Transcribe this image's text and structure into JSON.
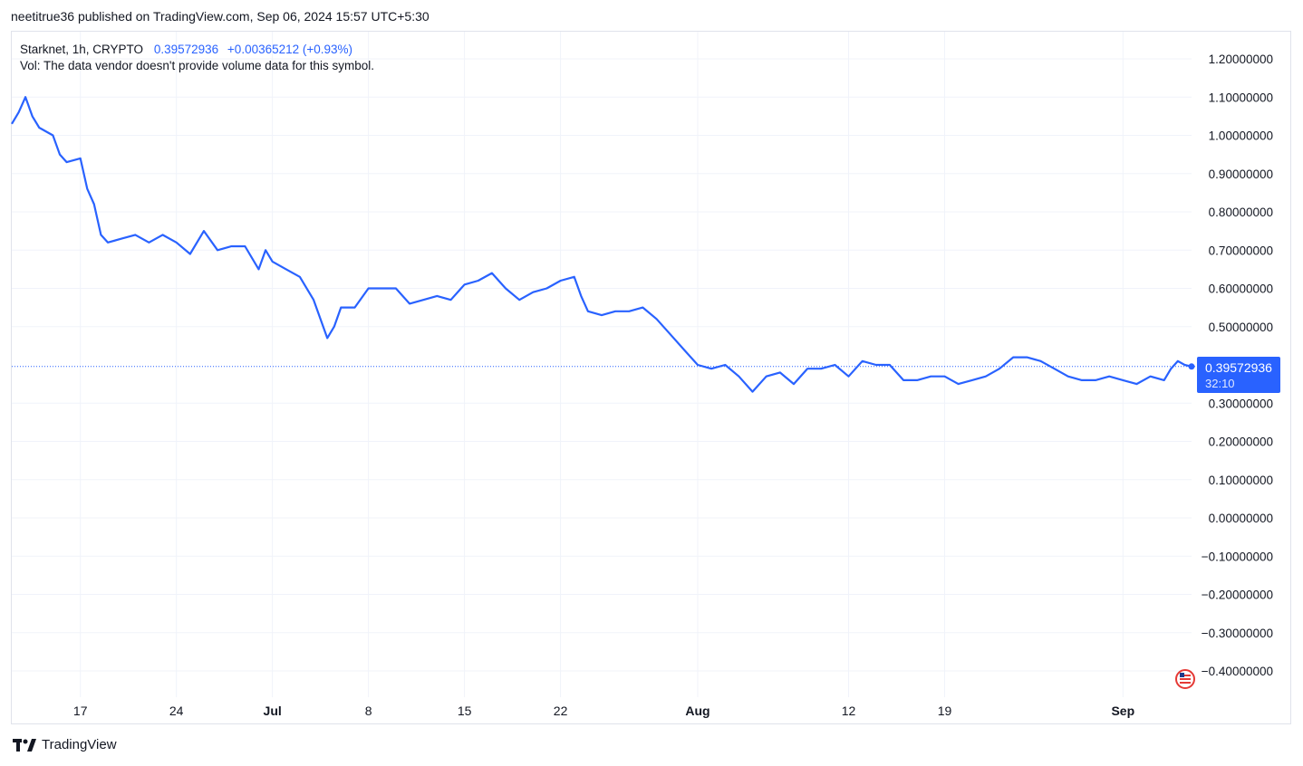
{
  "publisher_line": "neetitrue36 published on TradingView.com, Sep 06, 2024 15:57 UTC+5:30",
  "legend": {
    "symbol": "Starknet, 1h, CRYPTO",
    "last": "0.39572936",
    "change": "+0.00365212 (+0.93%)",
    "volume_note": "Vol: The data vendor doesn't provide volume data for this symbol."
  },
  "price_label": {
    "value": "0.39572936",
    "countdown": "32:10"
  },
  "footer": {
    "brand": "TradingView"
  },
  "colors": {
    "line": "#2962ff",
    "label_bg": "#2962ff",
    "grid": "#f0f3fa",
    "text": "#131722"
  },
  "icons": {
    "brand_logo": "tradingview-logo-icon",
    "flag": "us-flag-icon"
  },
  "chart_data": {
    "type": "line",
    "title": "",
    "xlabel": "",
    "ylabel": "",
    "grid": true,
    "x_range": [
      "2024-06-12",
      "2024-09-06"
    ],
    "ylim": [
      -0.45,
      1.25
    ],
    "y_ticks": [
      "1.20000000",
      "1.10000000",
      "1.00000000",
      "0.90000000",
      "0.80000000",
      "0.70000000",
      "0.60000000",
      "0.50000000",
      "0.30000000",
      "0.20000000",
      "0.10000000",
      "0.00000000",
      "−0.10000000",
      "−0.20000000",
      "−0.30000000",
      "−0.40000000"
    ],
    "y_tick_values": [
      1.2,
      1.1,
      1.0,
      0.9,
      0.8,
      0.7,
      0.6,
      0.5,
      0.3,
      0.2,
      0.1,
      0.0,
      -0.1,
      -0.2,
      -0.3,
      -0.4
    ],
    "x_ticks": [
      {
        "label": "17",
        "date": "2024-06-17",
        "bold": false
      },
      {
        "label": "24",
        "date": "2024-06-24",
        "bold": false
      },
      {
        "label": "Jul",
        "date": "2024-07-01",
        "bold": true
      },
      {
        "label": "8",
        "date": "2024-07-08",
        "bold": false
      },
      {
        "label": "15",
        "date": "2024-07-15",
        "bold": false
      },
      {
        "label": "22",
        "date": "2024-07-22",
        "bold": false
      },
      {
        "label": "Aug",
        "date": "2024-08-01",
        "bold": true
      },
      {
        "label": "12",
        "date": "2024-08-12",
        "bold": false
      },
      {
        "label": "19",
        "date": "2024-08-19",
        "bold": false
      },
      {
        "label": "Sep",
        "date": "2024-09-01",
        "bold": true
      }
    ],
    "last_price": 0.39572936,
    "series": [
      {
        "points": [
          [
            "2024-06-12",
            1.03
          ],
          [
            "2024-06-12",
            1.06
          ],
          [
            "2024-06-13",
            1.1
          ],
          [
            "2024-06-13",
            1.05
          ],
          [
            "2024-06-14",
            1.02
          ],
          [
            "2024-06-15",
            1.0
          ],
          [
            "2024-06-15",
            0.95
          ],
          [
            "2024-06-16",
            0.93
          ],
          [
            "2024-06-17",
            0.94
          ],
          [
            "2024-06-17",
            0.86
          ],
          [
            "2024-06-18",
            0.82
          ],
          [
            "2024-06-18",
            0.74
          ],
          [
            "2024-06-19",
            0.72
          ],
          [
            "2024-06-20",
            0.73
          ],
          [
            "2024-06-21",
            0.74
          ],
          [
            "2024-06-22",
            0.72
          ],
          [
            "2024-06-23",
            0.74
          ],
          [
            "2024-06-24",
            0.72
          ],
          [
            "2024-06-25",
            0.69
          ],
          [
            "2024-06-26",
            0.75
          ],
          [
            "2024-06-27",
            0.7
          ],
          [
            "2024-06-28",
            0.71
          ],
          [
            "2024-06-29",
            0.71
          ],
          [
            "2024-06-30",
            0.65
          ],
          [
            "2024-06-30",
            0.7
          ],
          [
            "2024-07-01",
            0.67
          ],
          [
            "2024-07-02",
            0.65
          ],
          [
            "2024-07-03",
            0.63
          ],
          [
            "2024-07-04",
            0.57
          ],
          [
            "2024-07-05",
            0.47
          ],
          [
            "2024-07-05",
            0.5
          ],
          [
            "2024-07-06",
            0.55
          ],
          [
            "2024-07-07",
            0.55
          ],
          [
            "2024-07-08",
            0.6
          ],
          [
            "2024-07-09",
            0.6
          ],
          [
            "2024-07-10",
            0.6
          ],
          [
            "2024-07-11",
            0.56
          ],
          [
            "2024-07-12",
            0.57
          ],
          [
            "2024-07-13",
            0.58
          ],
          [
            "2024-07-14",
            0.57
          ],
          [
            "2024-07-15",
            0.61
          ],
          [
            "2024-07-16",
            0.62
          ],
          [
            "2024-07-17",
            0.64
          ],
          [
            "2024-07-18",
            0.6
          ],
          [
            "2024-07-19",
            0.57
          ],
          [
            "2024-07-20",
            0.59
          ],
          [
            "2024-07-21",
            0.6
          ],
          [
            "2024-07-22",
            0.62
          ],
          [
            "2024-07-23",
            0.63
          ],
          [
            "2024-07-23",
            0.58
          ],
          [
            "2024-07-24",
            0.54
          ],
          [
            "2024-07-25",
            0.53
          ],
          [
            "2024-07-26",
            0.54
          ],
          [
            "2024-07-27",
            0.54
          ],
          [
            "2024-07-28",
            0.55
          ],
          [
            "2024-07-29",
            0.52
          ],
          [
            "2024-07-30",
            0.48
          ],
          [
            "2024-07-31",
            0.44
          ],
          [
            "2024-08-01",
            0.4
          ],
          [
            "2024-08-02",
            0.39
          ],
          [
            "2024-08-03",
            0.4
          ],
          [
            "2024-08-04",
            0.37
          ],
          [
            "2024-08-05",
            0.33
          ],
          [
            "2024-08-06",
            0.37
          ],
          [
            "2024-08-07",
            0.38
          ],
          [
            "2024-08-08",
            0.35
          ],
          [
            "2024-08-09",
            0.39
          ],
          [
            "2024-08-10",
            0.39
          ],
          [
            "2024-08-11",
            0.4
          ],
          [
            "2024-08-12",
            0.37
          ],
          [
            "2024-08-13",
            0.41
          ],
          [
            "2024-08-14",
            0.4
          ],
          [
            "2024-08-15",
            0.4
          ],
          [
            "2024-08-16",
            0.36
          ],
          [
            "2024-08-17",
            0.36
          ],
          [
            "2024-08-18",
            0.37
          ],
          [
            "2024-08-19",
            0.37
          ],
          [
            "2024-08-20",
            0.35
          ],
          [
            "2024-08-21",
            0.36
          ],
          [
            "2024-08-22",
            0.37
          ],
          [
            "2024-08-23",
            0.39
          ],
          [
            "2024-08-24",
            0.42
          ],
          [
            "2024-08-25",
            0.42
          ],
          [
            "2024-08-26",
            0.41
          ],
          [
            "2024-08-27",
            0.39
          ],
          [
            "2024-08-28",
            0.37
          ],
          [
            "2024-08-29",
            0.36
          ],
          [
            "2024-08-30",
            0.36
          ],
          [
            "2024-08-31",
            0.37
          ],
          [
            "2024-09-01",
            0.36
          ],
          [
            "2024-09-02",
            0.35
          ],
          [
            "2024-09-03",
            0.37
          ],
          [
            "2024-09-04",
            0.36
          ],
          [
            "2024-09-04",
            0.39
          ],
          [
            "2024-09-05",
            0.41
          ],
          [
            "2024-09-05",
            0.4
          ],
          [
            "2024-09-06",
            0.39572936
          ]
        ]
      }
    ]
  }
}
